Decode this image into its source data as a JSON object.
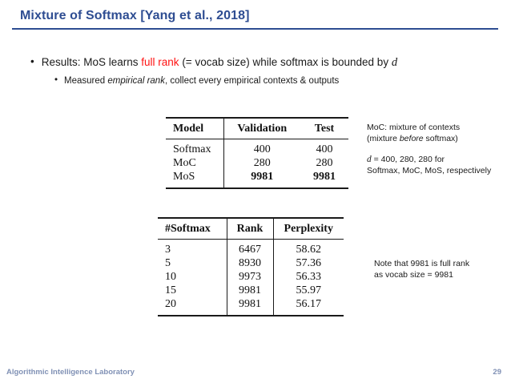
{
  "slide": {
    "title": "Mixture of Softmax [Yang et al., 2018]",
    "bullet_char": "•",
    "footer": {
      "lab": "Algorithmic Intelligence Laboratory",
      "page": "29"
    }
  },
  "bullets": {
    "main_pre": "Results: MoS learns ",
    "main_highlight": "full rank",
    "main_mid": " (= vocab size) while softmax is bounded by ",
    "main_math": "d",
    "sub_pre": "Measured ",
    "sub_italic": "empirical rank",
    "sub_post": ", collect every empirical contexts & outputs"
  },
  "table1": {
    "headers": {
      "model": "Model",
      "validation": "Validation",
      "test": "Test"
    },
    "rows": [
      {
        "model": "Softmax",
        "validation": "400",
        "test": "400"
      },
      {
        "model": "MoC",
        "validation": "280",
        "test": "280"
      },
      {
        "model": "MoS",
        "validation": "9981",
        "test": "9981"
      }
    ]
  },
  "table2": {
    "headers": {
      "softmax": "#Softmax",
      "rank": "Rank",
      "perplexity": "Perplexity"
    },
    "rows": [
      {
        "softmax": "3",
        "rank": "6467",
        "perplexity": "58.62"
      },
      {
        "softmax": "5",
        "rank": "8930",
        "perplexity": "57.36"
      },
      {
        "softmax": "10",
        "rank": "9973",
        "perplexity": "56.33"
      },
      {
        "softmax": "15",
        "rank": "9981",
        "perplexity": "55.97"
      },
      {
        "softmax": "20",
        "rank": "9981",
        "perplexity": "56.17"
      }
    ]
  },
  "annotations": {
    "moc_line1": "MoC: mixture of contexts",
    "moc_line2_pre": "(mixture ",
    "moc_line2_italic": "before",
    "moc_line2_post": " softmax)",
    "d_math": "d",
    "d_eq": " = 400, 280, 280 for",
    "d_line2": "Softmax, MoC, MoS, respectively",
    "note_line1": "Note that 9981 is full rank",
    "note_line2": "as vocab size = 9981"
  },
  "colors": {
    "title_blue": "#2e4d92",
    "accent_red": "#ff1212",
    "footer_blue": "#8091b5",
    "table_rule": "#1a1a1a"
  }
}
